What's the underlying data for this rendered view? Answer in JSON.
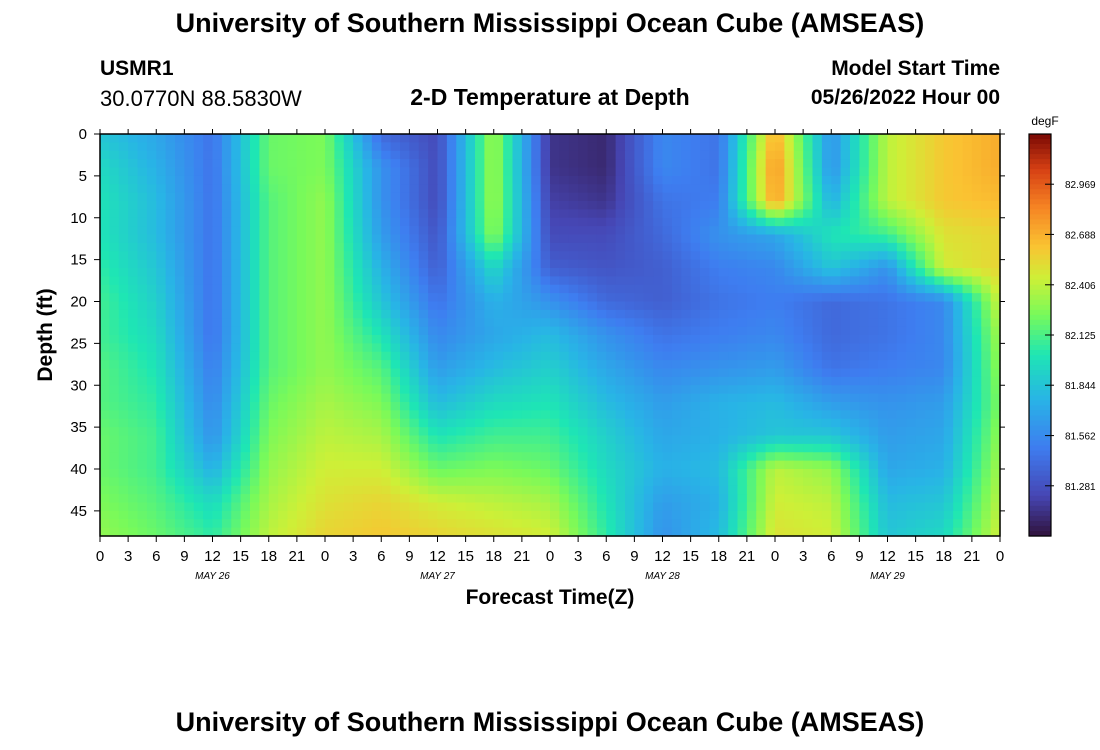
{
  "page": {
    "title": "University of Southern Mississippi Ocean Cube (AMSEAS)",
    "title_repeat": "University of Southern Mississippi Ocean Cube (AMSEAS)",
    "station": "USMR1",
    "coordinates": "30.0770N  88.5830W",
    "subtitle": "2-D Temperature at Depth",
    "model_start_label": "Model Start Time",
    "model_start_value": "05/26/2022 Hour 00"
  },
  "chart_data": {
    "type": "heatmap",
    "title": "2-D Temperature at Depth",
    "xlabel": "Forecast Time(Z)",
    "ylabel": "Depth (ft)",
    "x_unit": "hours since 05/26/2022 00Z",
    "xlim": [
      0,
      96
    ],
    "ylim": [
      0,
      48
    ],
    "y_inverted": true,
    "x_tick_labels": [
      "0",
      "3",
      "6",
      "9",
      "12",
      "15",
      "18",
      "21",
      "0",
      "3",
      "6",
      "9",
      "12",
      "15",
      "18",
      "21",
      "0",
      "3",
      "6",
      "9",
      "12",
      "15",
      "18",
      "21",
      "0",
      "3",
      "6",
      "9",
      "12",
      "15",
      "18",
      "21",
      "0"
    ],
    "y_tick_labels": [
      "0",
      "5",
      "10",
      "15",
      "20",
      "25",
      "30",
      "35",
      "40",
      "45"
    ],
    "y_tick_values": [
      0,
      5,
      10,
      15,
      20,
      25,
      30,
      35,
      40,
      45
    ],
    "day_labels": [
      "MAY 26",
      "MAY 27",
      "MAY 28",
      "MAY 29"
    ],
    "day_label_hours": [
      12,
      36,
      60,
      84
    ],
    "colorbar": {
      "unit": "degF",
      "min": 81.0,
      "max": 83.25,
      "tick_values": [
        82.969,
        82.688,
        82.406,
        82.125,
        81.844,
        81.562,
        81.281
      ],
      "tick_labels": [
        "82.969",
        "82.688",
        "82.406",
        "82.125",
        "81.844",
        "81.562",
        "81.281"
      ]
    },
    "grid_x_hours": [
      0,
      6,
      12,
      18,
      24,
      30,
      36,
      42,
      48,
      54,
      60,
      66,
      72,
      78,
      84,
      90,
      96
    ],
    "grid_depths_ft": [
      0,
      4,
      8,
      12,
      16,
      20,
      24,
      28,
      32,
      36,
      40,
      44,
      48
    ],
    "temperature_degF": [
      [
        81.85,
        81.7,
        81.45,
        82.2,
        82.25,
        81.4,
        81.25,
        82.35,
        81.15,
        81.1,
        81.55,
        81.45,
        82.7,
        81.6,
        82.4,
        82.6,
        82.7
      ],
      [
        81.95,
        81.75,
        81.45,
        82.2,
        82.25,
        81.6,
        81.25,
        82.35,
        81.15,
        81.1,
        81.55,
        81.45,
        82.8,
        81.6,
        82.4,
        82.6,
        82.7
      ],
      [
        82.0,
        81.8,
        81.45,
        82.15,
        82.3,
        81.6,
        81.25,
        82.35,
        81.2,
        81.15,
        81.45,
        81.5,
        82.75,
        81.75,
        82.4,
        82.6,
        82.65
      ],
      [
        82.0,
        81.8,
        81.45,
        82.15,
        82.3,
        81.65,
        81.3,
        82.3,
        81.25,
        81.25,
        81.4,
        81.6,
        81.7,
        82.0,
        82.1,
        82.5,
        82.55
      ],
      [
        82.05,
        81.85,
        81.45,
        82.15,
        82.3,
        81.75,
        81.35,
        81.95,
        81.35,
        81.3,
        81.35,
        81.5,
        81.55,
        81.85,
        81.6,
        82.45,
        82.55
      ],
      [
        82.1,
        81.9,
        81.45,
        82.15,
        82.3,
        81.85,
        81.45,
        81.75,
        81.6,
        81.4,
        81.35,
        81.45,
        81.5,
        81.4,
        81.45,
        81.55,
        82.45
      ],
      [
        82.1,
        81.95,
        81.45,
        82.15,
        82.3,
        82.0,
        81.55,
        81.7,
        81.8,
        81.6,
        81.45,
        81.5,
        81.55,
        81.4,
        81.45,
        81.55,
        82.35
      ],
      [
        82.15,
        82.0,
        81.5,
        82.15,
        82.3,
        82.15,
        81.65,
        81.8,
        81.9,
        81.7,
        81.55,
        81.6,
        81.65,
        81.45,
        81.5,
        81.55,
        82.3
      ],
      [
        82.15,
        82.05,
        81.55,
        82.2,
        82.35,
        82.25,
        81.8,
        81.95,
        82.0,
        81.8,
        81.65,
        81.75,
        81.8,
        81.65,
        81.6,
        81.65,
        82.25
      ],
      [
        82.2,
        82.1,
        81.6,
        82.25,
        82.4,
        82.35,
        82.0,
        82.1,
        82.1,
        81.9,
        81.7,
        81.75,
        81.85,
        81.85,
        81.65,
        81.7,
        82.3
      ],
      [
        82.2,
        82.1,
        81.75,
        82.3,
        82.45,
        82.45,
        82.2,
        82.25,
        82.2,
        81.95,
        81.75,
        81.8,
        82.4,
        82.3,
        81.7,
        81.75,
        82.35
      ],
      [
        82.25,
        82.15,
        81.95,
        82.35,
        82.5,
        82.55,
        82.45,
        82.4,
        82.35,
        82.0,
        81.65,
        81.75,
        82.45,
        82.4,
        81.8,
        81.85,
        82.4
      ],
      [
        82.3,
        82.2,
        82.05,
        82.4,
        82.55,
        82.6,
        82.55,
        82.5,
        82.45,
        82.05,
        81.6,
        81.8,
        82.5,
        82.45,
        81.85,
        81.95,
        82.45
      ]
    ]
  }
}
